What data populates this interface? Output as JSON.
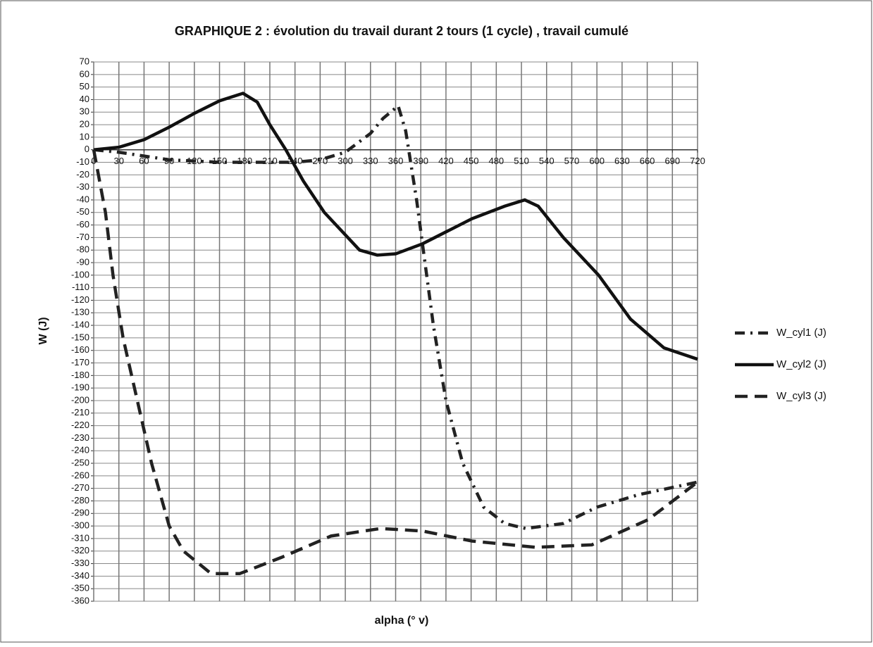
{
  "chart_data": {
    "type": "line",
    "title": "GRAPHIQUE 2 : évolution du travail durant 2 tours (1 cycle) , travail cumulé",
    "xlabel": "alpha (° v)",
    "ylabel": "W (J)",
    "xlim": [
      0,
      720
    ],
    "ylim": [
      -360,
      70
    ],
    "xticks": [
      0,
      30,
      60,
      90,
      120,
      150,
      180,
      210,
      240,
      270,
      300,
      330,
      360,
      390,
      420,
      450,
      480,
      510,
      540,
      570,
      600,
      630,
      660,
      690,
      720
    ],
    "yticks": [
      -360,
      -350,
      -340,
      -330,
      -320,
      -310,
      -300,
      -290,
      -280,
      -270,
      -260,
      -250,
      -240,
      -230,
      -220,
      -210,
      -200,
      -190,
      -180,
      -170,
      -160,
      -150,
      -140,
      -130,
      -120,
      -110,
      -100,
      -90,
      -80,
      -70,
      -60,
      -50,
      -40,
      -30,
      -20,
      -10,
      0,
      10,
      20,
      30,
      40,
      50,
      60,
      70
    ],
    "grid": true,
    "legend": "right",
    "series": [
      {
        "name": "W_cyl1 (J)",
        "color": "#222222",
        "line_style": "dash-dot",
        "x": [
          0,
          30,
          60,
          90,
          150,
          240,
          270,
          300,
          330,
          345,
          363,
          372,
          385,
          395,
          405,
          420,
          440,
          465,
          490,
          515,
          560,
          600,
          650,
          720
        ],
        "values": [
          0,
          -2,
          -5,
          -8,
          -10,
          -10,
          -8,
          -2,
          13,
          25,
          35,
          15,
          -40,
          -90,
          -140,
          -200,
          -250,
          -285,
          -298,
          -302,
          -298,
          -285,
          -275,
          -265
        ]
      },
      {
        "name": "W_cyl2 (J)",
        "color": "#111111",
        "line_style": "solid",
        "x": [
          0,
          30,
          60,
          90,
          120,
          150,
          178,
          195,
          210,
          229,
          250,
          275,
          317,
          338,
          360,
          392,
          451,
          490,
          514,
          530,
          560,
          602,
          640,
          680,
          720
        ],
        "values": [
          0,
          2,
          8,
          18,
          29,
          39,
          45,
          38,
          20,
          0,
          -25,
          -50,
          -80,
          -84,
          -83,
          -75,
          -55,
          -45,
          -40,
          -45,
          -70,
          -100,
          -135,
          -158,
          -167
        ]
      },
      {
        "name": "W_cyl3 (J)",
        "color": "#222222",
        "line_style": "dash",
        "x": [
          0,
          14,
          23,
          35,
          52,
          69,
          90,
          107,
          140,
          174,
          224,
          283,
          342,
          392,
          451,
          527,
          594,
          661,
          720
        ],
        "values": [
          0,
          -50,
          -100,
          -150,
          -200,
          -250,
          -300,
          -320,
          -338,
          -338,
          -325,
          -308,
          -302,
          -304,
          -312,
          -317,
          -315,
          -295,
          -265
        ]
      }
    ]
  }
}
